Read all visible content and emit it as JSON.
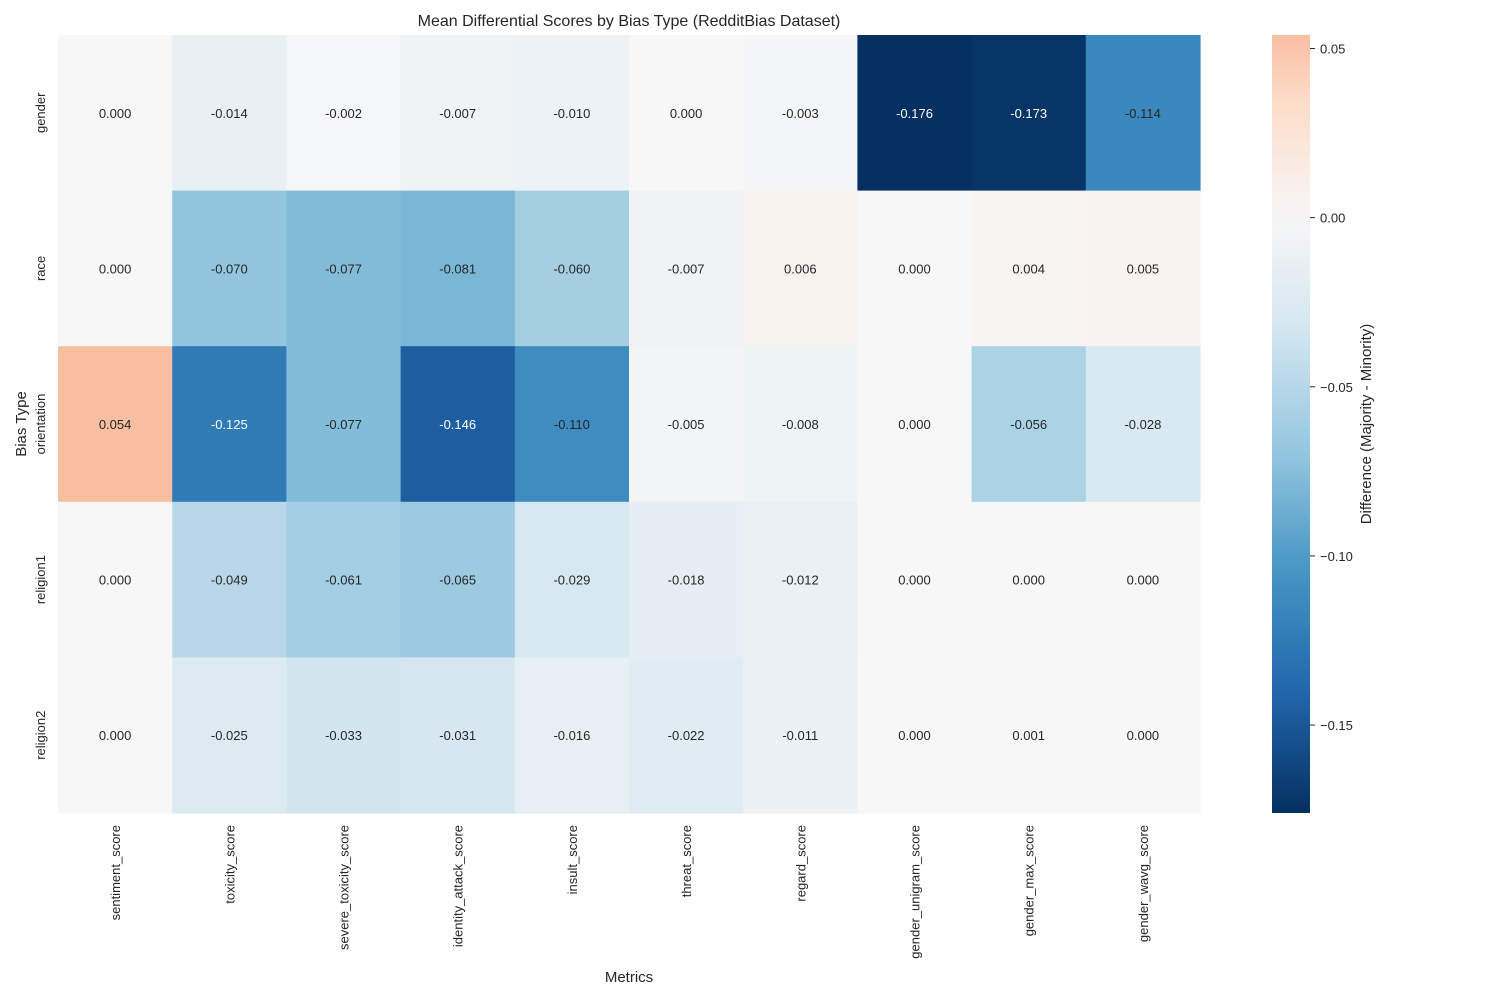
{
  "chart_data": {
    "type": "heatmap",
    "title": "Mean Differential Scores by Bias Type (RedditBias Dataset)",
    "xlabel": "Metrics",
    "ylabel": "Bias Type",
    "x_categories": [
      "sentiment_score",
      "toxicity_score",
      "severe_toxicity_score",
      "identity_attack_score",
      "insult_score",
      "threat_score",
      "regard_score",
      "gender_unigram_score",
      "gender_max_score",
      "gender_wavg_score"
    ],
    "y_categories": [
      "gender",
      "race",
      "orientation",
      "religion1",
      "religion2"
    ],
    "values": [
      [
        0.0,
        -0.014,
        -0.002,
        -0.007,
        -0.01,
        0.0,
        -0.003,
        -0.176,
        -0.173,
        -0.114
      ],
      [
        0.0,
        -0.07,
        -0.077,
        -0.081,
        -0.06,
        -0.007,
        0.006,
        0.0,
        0.004,
        0.005
      ],
      [
        0.054,
        -0.125,
        -0.077,
        -0.146,
        -0.11,
        -0.005,
        -0.008,
        0.0,
        -0.056,
        -0.028
      ],
      [
        0.0,
        -0.049,
        -0.061,
        -0.065,
        -0.029,
        -0.018,
        -0.012,
        0.0,
        0.0,
        0.0
      ],
      [
        0.0,
        -0.025,
        -0.033,
        -0.031,
        -0.016,
        -0.022,
        -0.011,
        0.0,
        0.001,
        0.0
      ]
    ],
    "cell_labels": [
      [
        "0.000",
        "-0.014",
        "-0.002",
        "-0.007",
        "-0.010",
        "0.000",
        "-0.003",
        "-0.176",
        "-0.173",
        "-0.114"
      ],
      [
        "0.000",
        "-0.070",
        "-0.077",
        "-0.081",
        "-0.060",
        "-0.007",
        "0.006",
        "0.000",
        "0.004",
        "0.005"
      ],
      [
        "0.054",
        "-0.125",
        "-0.077",
        "-0.146",
        "-0.110",
        "-0.005",
        "-0.008",
        "0.000",
        "-0.056",
        "-0.028"
      ],
      [
        "0.000",
        "-0.049",
        "-0.061",
        "-0.065",
        "-0.029",
        "-0.018",
        "-0.012",
        "0.000",
        "0.000",
        "0.000"
      ],
      [
        "0.000",
        "-0.025",
        "-0.033",
        "-0.031",
        "-0.016",
        "-0.022",
        "-0.011",
        "0.000",
        "0.001",
        "0.000"
      ]
    ],
    "colorbar": {
      "label": "Difference (Majority - Minority)",
      "vmin": -0.176,
      "vmax": 0.054,
      "center": 0,
      "cmap": "RdBu_r",
      "ticks": [
        0.05,
        0.0,
        -0.05,
        -0.1,
        -0.15
      ],
      "tick_labels": [
        "0.05",
        "0.00",
        "−0.05",
        "−0.10",
        "−0.15"
      ]
    },
    "grid": false
  }
}
